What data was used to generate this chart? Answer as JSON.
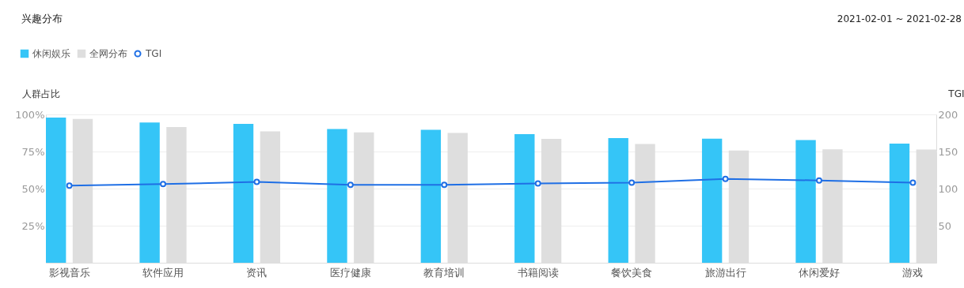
{
  "chart_data": {
    "type": "bar",
    "title": "兴趣分布",
    "annotations": [
      "2021-02-01 ~ 2021-02-28"
    ],
    "ylabel": "人群占比",
    "y2label": "TGI",
    "categories": [
      "影视音乐",
      "软件应用",
      "资讯",
      "医疗健康",
      "教育培训",
      "书籍阅读",
      "餐饮美食",
      "旅游出行",
      "休闲爱好",
      "游戏"
    ],
    "series": [
      {
        "name": "休闲娱乐",
        "color": "#35c5f7",
        "values": [
          97.9,
          94.5,
          93.6,
          90.2,
          89.6,
          86.7,
          84.1,
          83.7,
          82.7,
          80.3
        ]
      },
      {
        "name": "全网分布",
        "color": "#dedede",
        "values": [
          97.0,
          91.5,
          88.5,
          87.9,
          87.5,
          83.5,
          80.1,
          75.7,
          76.5,
          76.3
        ]
      },
      {
        "name": "TGI",
        "type": "line",
        "axis": "y2",
        "color": "#1f6fe5",
        "marker": "circle",
        "values": [
          104,
          106,
          109,
          105,
          105,
          107,
          108,
          113,
          111,
          108
        ]
      }
    ],
    "ylim": [
      0,
      100
    ],
    "yticks": [
      {
        "value": 25,
        "label": "25%"
      },
      {
        "value": 50,
        "label": "50%"
      },
      {
        "value": 75,
        "label": "75%"
      },
      {
        "value": 100,
        "label": "100%"
      }
    ],
    "y2lim": [
      0,
      200
    ],
    "y2ticks": [
      50,
      100,
      150,
      200
    ],
    "grid": "y",
    "legend": "top left"
  }
}
